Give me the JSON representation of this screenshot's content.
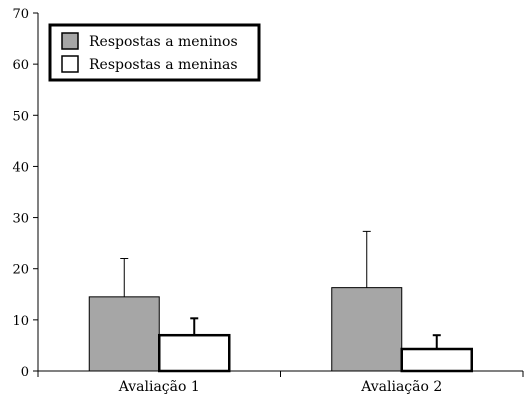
{
  "chart_data": {
    "type": "bar",
    "categories": [
      "Avaliação 1",
      "Avaliação 2"
    ],
    "series": [
      {
        "name": "Respostas a meninos",
        "values": [
          14.5,
          16.3
        ],
        "error_upper": [
          22.0,
          27.3
        ],
        "color": "#a6a6a6"
      },
      {
        "name": "Respostas a meninas",
        "values": [
          7.0,
          4.3
        ],
        "error_upper": [
          10.3,
          7.0
        ],
        "color": "#ffffff"
      }
    ],
    "y_ticks": [
      0,
      10,
      20,
      30,
      40,
      50,
      60,
      70
    ],
    "ylim": [
      0,
      70
    ],
    "grid": false,
    "legend_position": "top-left"
  }
}
